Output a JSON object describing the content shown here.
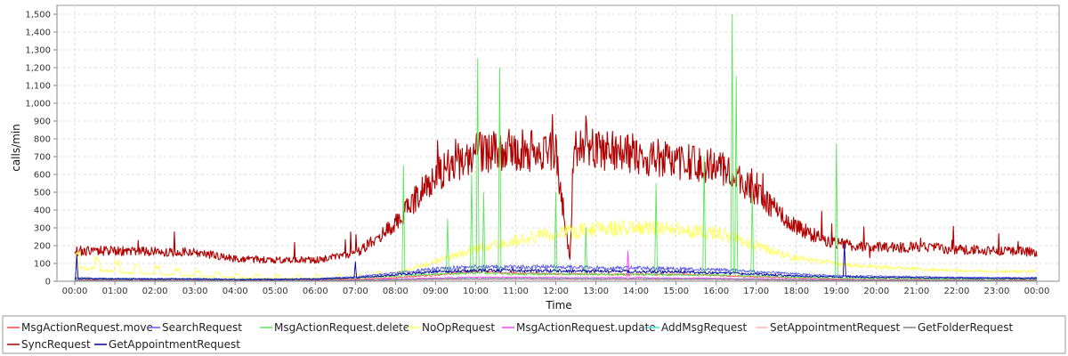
{
  "chart_data": {
    "type": "line",
    "title": "",
    "xlabel": "Time",
    "ylabel": "calls/min",
    "ylim": [
      0,
      1550
    ],
    "y_ticks": [
      0,
      100,
      200,
      300,
      400,
      500,
      600,
      700,
      800,
      900,
      1000,
      1100,
      1200,
      1300,
      1400,
      1500
    ],
    "y_tick_labels": [
      "0",
      "100",
      "200",
      "300",
      "400",
      "500",
      "600",
      "700",
      "800",
      "900",
      "1,000",
      "1,100",
      "1,200",
      "1,300",
      "1,400",
      "1,500"
    ],
    "x_tick_labels": [
      "00:00",
      "01:00",
      "02:00",
      "03:00",
      "04:00",
      "05:00",
      "06:00",
      "07:00",
      "08:00",
      "09:00",
      "10:00",
      "11:00",
      "12:00",
      "13:00",
      "14:00",
      "15:00",
      "16:00",
      "17:00",
      "18:00",
      "19:00",
      "20:00",
      "21:00",
      "22:00",
      "23:00",
      "00:00"
    ],
    "grid": true,
    "legend_position": "bottom",
    "series": [
      {
        "name": "MsgActionRequest.move",
        "color": "#ff4b4b",
        "points": [
          [
            0,
            10
          ],
          [
            1,
            8
          ],
          [
            2,
            8
          ],
          [
            3,
            8
          ],
          [
            4,
            6
          ],
          [
            5,
            6
          ],
          [
            6,
            8
          ],
          [
            7,
            12
          ],
          [
            8,
            20
          ],
          [
            9,
            35
          ],
          [
            10,
            55
          ],
          [
            11,
            45
          ],
          [
            12,
            40
          ],
          [
            13,
            40
          ],
          [
            14,
            38
          ],
          [
            15,
            38
          ],
          [
            16,
            32
          ],
          [
            17,
            25
          ],
          [
            18,
            18
          ],
          [
            19,
            12
          ],
          [
            20,
            10
          ],
          [
            21,
            10
          ],
          [
            22,
            8
          ],
          [
            23,
            8
          ],
          [
            24,
            8
          ]
        ]
      },
      {
        "name": "SearchRequest",
        "color": "#5a5ae6",
        "points": [
          [
            0,
            20
          ],
          [
            1,
            15
          ],
          [
            2,
            15
          ],
          [
            3,
            15
          ],
          [
            4,
            12
          ],
          [
            5,
            12
          ],
          [
            6,
            15
          ],
          [
            7,
            25
          ],
          [
            8,
            45
          ],
          [
            9,
            70
          ],
          [
            10,
            80
          ],
          [
            11,
            80
          ],
          [
            12,
            80
          ],
          [
            13,
            75
          ],
          [
            14,
            75
          ],
          [
            15,
            70
          ],
          [
            16,
            65
          ],
          [
            17,
            55
          ],
          [
            18,
            40
          ],
          [
            19,
            30
          ],
          [
            20,
            28
          ],
          [
            21,
            25
          ],
          [
            22,
            22
          ],
          [
            23,
            20
          ],
          [
            24,
            20
          ]
        ]
      },
      {
        "name": "MsgActionRequest.delete",
        "color": "#5ae65a",
        "points": [
          [
            0,
            15
          ],
          [
            1,
            12
          ],
          [
            2,
            12
          ],
          [
            3,
            12
          ],
          [
            4,
            10
          ],
          [
            5,
            10
          ],
          [
            6,
            12
          ],
          [
            7,
            18
          ],
          [
            8,
            30
          ],
          [
            9,
            40
          ],
          [
            10,
            45
          ],
          [
            11,
            40
          ],
          [
            12,
            40
          ],
          [
            13,
            38
          ],
          [
            14,
            38
          ],
          [
            15,
            35
          ],
          [
            16,
            35
          ],
          [
            17,
            30
          ],
          [
            18,
            22
          ],
          [
            19,
            18
          ],
          [
            20,
            15
          ],
          [
            21,
            15
          ],
          [
            22,
            12
          ],
          [
            23,
            12
          ],
          [
            24,
            12
          ]
        ],
        "spikes": [
          [
            8.2,
            650
          ],
          [
            9.3,
            350
          ],
          [
            9.9,
            600
          ],
          [
            10.05,
            1250
          ],
          [
            10.2,
            500
          ],
          [
            10.6,
            1200
          ],
          [
            12.0,
            500
          ],
          [
            12.75,
            300
          ],
          [
            14.5,
            550
          ],
          [
            15.7,
            700
          ],
          [
            16.4,
            1500
          ],
          [
            16.5,
            1150
          ],
          [
            16.9,
            500
          ],
          [
            19.0,
            770
          ]
        ]
      },
      {
        "name": "NoOpRequest",
        "color": "#ffff60",
        "points": [
          [
            0,
            120
          ],
          [
            1,
            80
          ],
          [
            2,
            60
          ],
          [
            3,
            45
          ],
          [
            4,
            30
          ],
          [
            5,
            25
          ],
          [
            6,
            25
          ],
          [
            7,
            30
          ],
          [
            8,
            45
          ],
          [
            9,
            110
          ],
          [
            10,
            180
          ],
          [
            11,
            230
          ],
          [
            12,
            270
          ],
          [
            13,
            290
          ],
          [
            14,
            300
          ],
          [
            15,
            290
          ],
          [
            16,
            270
          ],
          [
            17,
            200
          ],
          [
            18,
            130
          ],
          [
            19,
            100
          ],
          [
            20,
            80
          ],
          [
            21,
            70
          ],
          [
            22,
            60
          ],
          [
            23,
            55
          ],
          [
            24,
            55
          ]
        ]
      },
      {
        "name": "MsgActionRequest.update",
        "color": "#ff40ff",
        "points": [
          [
            0,
            5
          ],
          [
            1,
            4
          ],
          [
            2,
            4
          ],
          [
            3,
            4
          ],
          [
            4,
            4
          ],
          [
            5,
            4
          ],
          [
            6,
            5
          ],
          [
            7,
            8
          ],
          [
            8,
            12
          ],
          [
            9,
            18
          ],
          [
            10,
            22
          ],
          [
            11,
            22
          ],
          [
            12,
            20
          ],
          [
            13,
            20
          ],
          [
            14,
            20
          ],
          [
            15,
            18
          ],
          [
            16,
            16
          ],
          [
            17,
            14
          ],
          [
            18,
            10
          ],
          [
            19,
            8
          ],
          [
            20,
            6
          ],
          [
            21,
            6
          ],
          [
            22,
            5
          ],
          [
            23,
            5
          ],
          [
            24,
            5
          ]
        ],
        "spikes": [
          [
            13.8,
            170
          ]
        ]
      },
      {
        "name": "AddMsgRequest",
        "color": "#40e6e6",
        "points": [
          [
            0,
            3
          ],
          [
            1,
            3
          ],
          [
            2,
            3
          ],
          [
            3,
            3
          ],
          [
            4,
            2
          ],
          [
            5,
            2
          ],
          [
            6,
            3
          ],
          [
            7,
            5
          ],
          [
            8,
            8
          ],
          [
            9,
            12
          ],
          [
            10,
            15
          ],
          [
            11,
            15
          ],
          [
            12,
            14
          ],
          [
            13,
            14
          ],
          [
            14,
            13
          ],
          [
            15,
            12
          ],
          [
            16,
            11
          ],
          [
            17,
            10
          ],
          [
            18,
            7
          ],
          [
            19,
            5
          ],
          [
            20,
            4
          ],
          [
            21,
            4
          ],
          [
            22,
            3
          ],
          [
            23,
            3
          ],
          [
            24,
            3
          ]
        ]
      },
      {
        "name": "SetAppointmentRequest",
        "color": "#ffb0c0",
        "points": [
          [
            0,
            2
          ],
          [
            1,
            2
          ],
          [
            2,
            2
          ],
          [
            3,
            2
          ],
          [
            4,
            2
          ],
          [
            5,
            2
          ],
          [
            6,
            2
          ],
          [
            7,
            3
          ],
          [
            8,
            5
          ],
          [
            9,
            8
          ],
          [
            10,
            10
          ],
          [
            11,
            10
          ],
          [
            12,
            9
          ],
          [
            13,
            9
          ],
          [
            14,
            9
          ],
          [
            15,
            8
          ],
          [
            16,
            8
          ],
          [
            17,
            6
          ],
          [
            18,
            4
          ],
          [
            19,
            3
          ],
          [
            20,
            3
          ],
          [
            21,
            2
          ],
          [
            22,
            2
          ],
          [
            23,
            2
          ],
          [
            24,
            2
          ]
        ]
      },
      {
        "name": "GetFolderRequest",
        "color": "#808080",
        "points": [
          [
            0,
            4
          ],
          [
            1,
            3
          ],
          [
            2,
            3
          ],
          [
            3,
            3
          ],
          [
            4,
            3
          ],
          [
            5,
            3
          ],
          [
            6,
            3
          ],
          [
            7,
            5
          ],
          [
            8,
            8
          ],
          [
            9,
            12
          ],
          [
            10,
            14
          ],
          [
            11,
            14
          ],
          [
            12,
            13
          ],
          [
            13,
            13
          ],
          [
            14,
            12
          ],
          [
            15,
            12
          ],
          [
            16,
            11
          ],
          [
            17,
            9
          ],
          [
            18,
            7
          ],
          [
            19,
            5
          ],
          [
            20,
            5
          ],
          [
            21,
            4
          ],
          [
            22,
            4
          ],
          [
            23,
            4
          ],
          [
            24,
            4
          ]
        ]
      },
      {
        "name": "SyncRequest",
        "color": "#b00000",
        "points": [
          [
            0,
            170
          ],
          [
            1,
            170
          ],
          [
            2,
            165
          ],
          [
            3,
            165
          ],
          [
            4,
            125
          ],
          [
            5,
            120
          ],
          [
            6,
            120
          ],
          [
            7,
            150
          ],
          [
            8,
            330
          ],
          [
            9,
            600
          ],
          [
            10,
            720
          ],
          [
            11,
            740
          ],
          [
            12,
            720
          ],
          [
            12.35,
            120
          ],
          [
            12.45,
            760
          ],
          [
            13,
            740
          ],
          [
            14,
            720
          ],
          [
            15,
            670
          ],
          [
            16,
            650
          ],
          [
            17,
            500
          ],
          [
            18,
            300
          ],
          [
            19,
            210
          ],
          [
            20,
            190
          ],
          [
            21,
            190
          ],
          [
            22,
            180
          ],
          [
            23,
            170
          ],
          [
            24,
            165
          ]
        ]
      },
      {
        "name": "GetAppointmentRequest",
        "color": "#0000a0",
        "points": [
          [
            0,
            15
          ],
          [
            1,
            12
          ],
          [
            2,
            12
          ],
          [
            3,
            12
          ],
          [
            4,
            10
          ],
          [
            5,
            10
          ],
          [
            6,
            12
          ],
          [
            7,
            20
          ],
          [
            8,
            35
          ],
          [
            9,
            55
          ],
          [
            10,
            60
          ],
          [
            11,
            60
          ],
          [
            12,
            58
          ],
          [
            13,
            56
          ],
          [
            14,
            55
          ],
          [
            15,
            52
          ],
          [
            16,
            48
          ],
          [
            17,
            40
          ],
          [
            18,
            30
          ],
          [
            19,
            25
          ],
          [
            20,
            22
          ],
          [
            21,
            20
          ],
          [
            22,
            18
          ],
          [
            23,
            16
          ],
          [
            24,
            16
          ]
        ],
        "spikes": [
          [
            0.05,
            150
          ],
          [
            7.0,
            110
          ],
          [
            19.2,
            210
          ]
        ]
      }
    ]
  }
}
